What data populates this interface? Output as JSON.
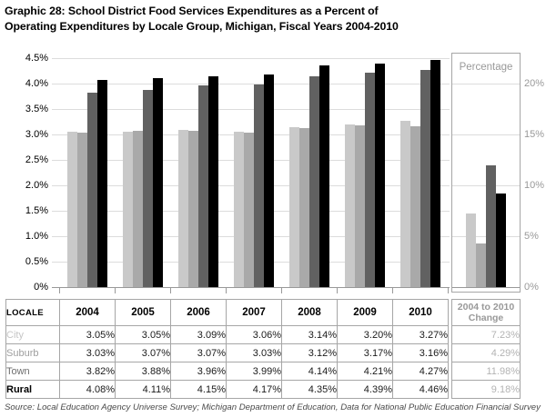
{
  "title": {
    "line1": "Graphic 28: School District Food Services Expenditures as a Percent of",
    "line2": "Operating Expenditures by Locale Group, Michigan, Fiscal Years 2004-2010"
  },
  "chart_data": {
    "type": "bar",
    "title": "School District Food Services Expenditures as a Percent of Operating Expenditures by Locale Group, Michigan, Fiscal Years 2004-2010",
    "categories": [
      "2004",
      "2005",
      "2006",
      "2007",
      "2008",
      "2009",
      "2010"
    ],
    "series": [
      {
        "name": "City",
        "color": "#c9c9c9",
        "values": [
          3.05,
          3.05,
          3.09,
          3.06,
          3.14,
          3.2,
          3.27
        ],
        "change_2004_to_2010": 7.23
      },
      {
        "name": "Suburb",
        "color": "#a9a9a9",
        "values": [
          3.03,
          3.07,
          3.07,
          3.03,
          3.12,
          3.17,
          3.16
        ],
        "change_2004_to_2010": 4.29
      },
      {
        "name": "Town",
        "color": "#616161",
        "values": [
          3.82,
          3.88,
          3.96,
          3.99,
          4.14,
          4.21,
          4.27
        ],
        "change_2004_to_2010": 11.98
      },
      {
        "name": "Rural",
        "color": "#000000",
        "values": [
          4.08,
          4.11,
          4.15,
          4.17,
          4.35,
          4.39,
          4.46
        ],
        "change_2004_to_2010": 9.18
      }
    ],
    "left_axis": {
      "tick_labels": [
        "4.5%",
        "4.0%",
        "3.5%",
        "3.0%",
        "2.5%",
        "2.0%",
        "1.5%",
        "1.0%",
        "0.5%",
        "0%"
      ],
      "min": 0,
      "max": 4.5,
      "step": 0.5
    },
    "right_axis": {
      "tick_labels": [
        "20%",
        "15%",
        "10%",
        "5%",
        "0%"
      ],
      "min": 0,
      "max": 22.5,
      "step": 5
    },
    "right_panel": {
      "label": "Percentage",
      "category": "2004 to 2010 Change"
    },
    "grid": true,
    "legend_position": "none"
  },
  "table": {
    "locale_header": "LOCALE",
    "years": [
      "2004",
      "2005",
      "2006",
      "2007",
      "2008",
      "2009",
      "2010"
    ],
    "change_header": [
      "2004 to 2010",
      "Change"
    ],
    "rows": [
      {
        "locale": "City",
        "label_color": "#c6c6c6",
        "bold": false,
        "values": [
          "3.05%",
          "3.05%",
          "3.09%",
          "3.06%",
          "3.14%",
          "3.20%",
          "3.27%"
        ],
        "change": "7.23%"
      },
      {
        "locale": "Suburb",
        "label_color": "#9e9e9e",
        "bold": false,
        "values": [
          "3.03%",
          "3.07%",
          "3.07%",
          "3.03%",
          "3.12%",
          "3.17%",
          "3.16%"
        ],
        "change": "4.29%"
      },
      {
        "locale": "Town",
        "label_color": "#6e6e6e",
        "bold": false,
        "values": [
          "3.82%",
          "3.88%",
          "3.96%",
          "3.99%",
          "4.14%",
          "4.21%",
          "4.27%"
        ],
        "change": "11.98%"
      },
      {
        "locale": "Rural",
        "label_color": "#000000",
        "bold": true,
        "values": [
          "4.08%",
          "4.11%",
          "4.15%",
          "4.17%",
          "4.35%",
          "4.39%",
          "4.46%"
        ],
        "change": "9.18%"
      }
    ]
  },
  "source": "Source: Local Education Agency Universe Survey; Michigan Department of Education, Data for National Public Education Financial Survey"
}
